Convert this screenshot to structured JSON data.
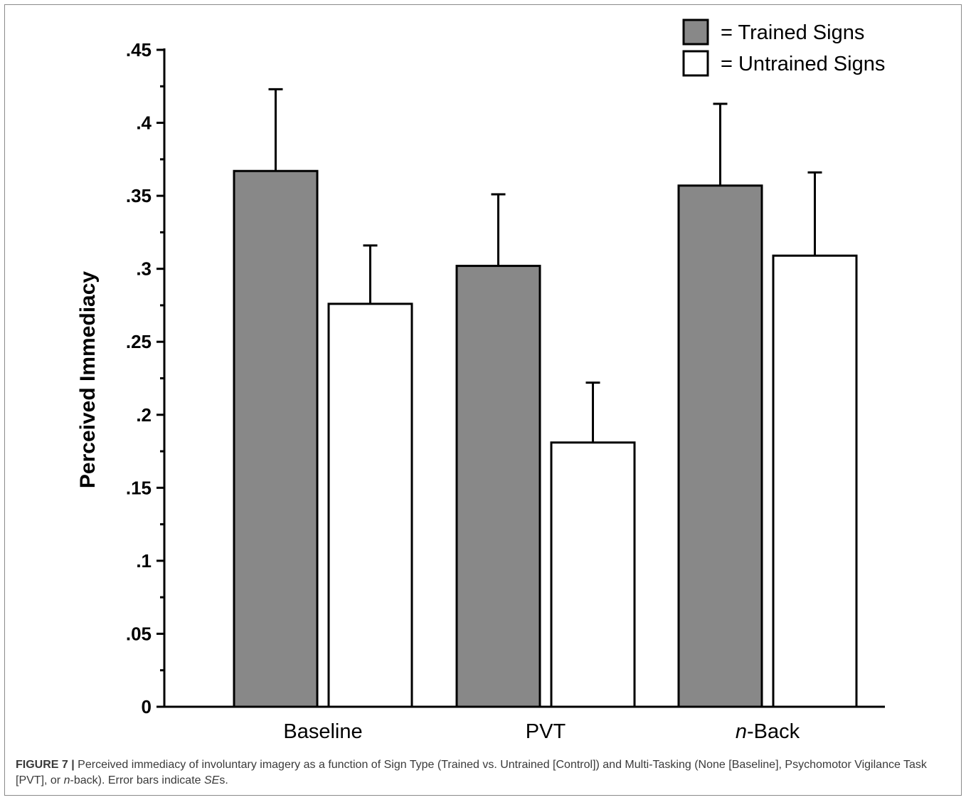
{
  "chart_data": {
    "type": "bar",
    "categories": [
      "Baseline",
      "PVT",
      "n-Back"
    ],
    "category_labels": [
      {
        "italic": "",
        "rest": "Baseline"
      },
      {
        "italic": "",
        "rest": "PVT"
      },
      {
        "italic": "n",
        "rest": "-Back"
      }
    ],
    "series": [
      {
        "name": "= Trained Signs",
        "color": "#888888",
        "values": [
          0.367,
          0.302,
          0.357
        ],
        "errors": [
          0.056,
          0.049,
          0.056
        ]
      },
      {
        "name": "= Untrained Signs",
        "color": "#ffffff",
        "values": [
          0.276,
          0.181,
          0.309
        ],
        "errors": [
          0.04,
          0.041,
          0.057
        ]
      }
    ],
    "ylabel": "Perceived Immediacy",
    "xlabel": "",
    "ylim": [
      0,
      0.45
    ],
    "yticks": [
      0,
      0.05,
      0.1,
      0.15,
      0.2,
      0.25,
      0.3,
      0.35,
      0.4,
      0.45
    ],
    "ytick_labels": [
      "0",
      ".05",
      ".1",
      ".15",
      ".2",
      ".25",
      ".3",
      ".35",
      ".4",
      ".45"
    ],
    "minor_ticks_per_major": 1,
    "legend_position": "top-right",
    "grid": false
  },
  "caption": {
    "figure_label": "FIGURE 7 |",
    "text_1": " Perceived immediacy of involuntary imagery as a function of Sign Type (Trained vs. Untrained [Control]) and Multi-Tasking (None [Baseline], Psychomotor Vigilance Task [PVT], or ",
    "italic_1": "n",
    "text_2": "-back). Error bars indicate ",
    "italic_2": "SE",
    "text_3": "s."
  }
}
